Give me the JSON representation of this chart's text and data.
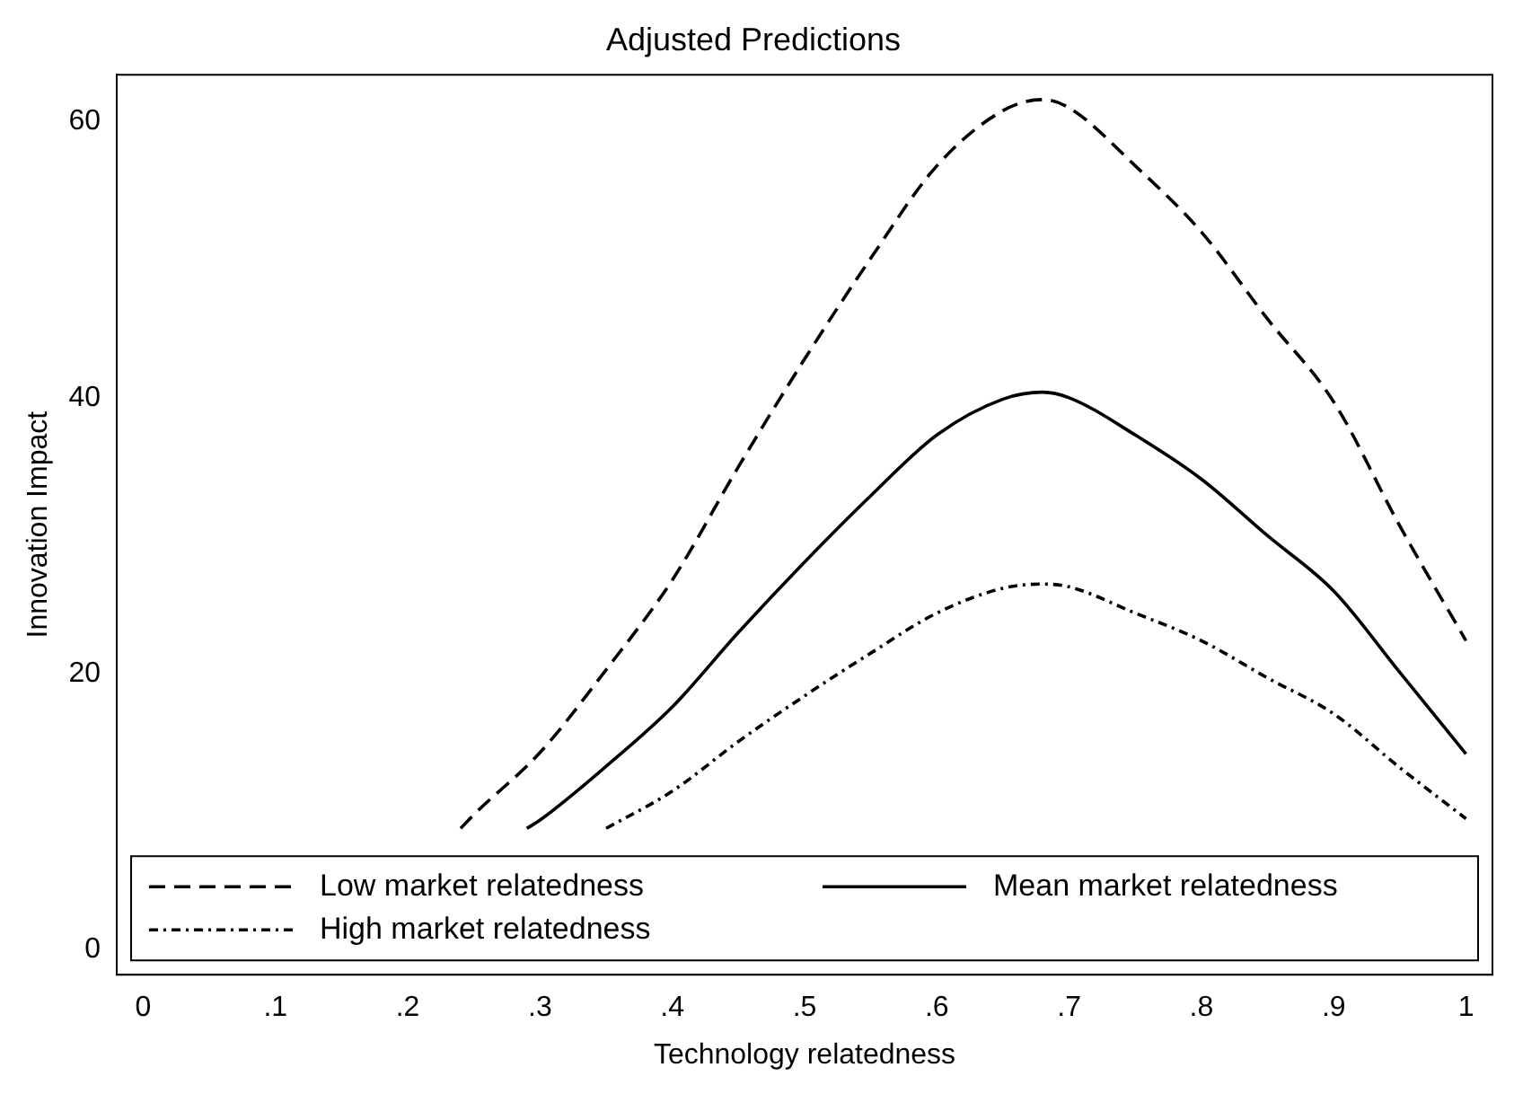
{
  "chart_data": {
    "type": "line",
    "title": "Adjusted Predictions",
    "xlabel": "Technology relatedness",
    "ylabel": "Innovation Impact",
    "xlim": [
      -0.02,
      1.02
    ],
    "ylim": [
      -1.8,
      63.4
    ],
    "xticks": [
      0,
      {
        "value": 0.1,
        "label": ".1"
      },
      {
        "value": 0.2,
        "label": ".2"
      },
      {
        "value": 0.3,
        "label": ".3"
      },
      {
        "value": 0.4,
        "label": ".4"
      },
      {
        "value": 0.5,
        "label": ".5"
      },
      {
        "value": 0.6,
        "label": ".6"
      },
      {
        "value": 0.7,
        "label": ".7"
      },
      {
        "value": 0.8,
        "label": ".8"
      },
      {
        "value": 0.9,
        "label": ".9"
      },
      1
    ],
    "yticks": [
      0,
      20,
      40,
      60
    ],
    "grid": false,
    "legend": "bottom",
    "marker": "none",
    "series": [
      {
        "name": "Low market relatedness",
        "color": "#000000",
        "line_style": "dashed",
        "x": [
          0.24,
          0.25,
          0.3,
          0.35,
          0.4,
          0.45,
          0.5,
          0.55,
          0.6,
          0.65,
          0.68,
          0.7,
          0.75,
          0.8,
          0.85,
          0.9,
          0.95,
          1
        ],
        "values": [
          8.8,
          9.8,
          14.3,
          20.3,
          26.8,
          35.0,
          42.8,
          50.1,
          56.8,
          60.8,
          61.6,
          61.0,
          56.8,
          52.0,
          45.7,
          39.7,
          30.7,
          22.4
        ]
      },
      {
        "name": "Mean market relatedness",
        "color": "#000000",
        "line_style": "solid",
        "x": [
          0.29,
          0.3,
          0.35,
          0.4,
          0.45,
          0.5,
          0.55,
          0.6,
          0.65,
          0.68,
          0.7,
          0.75,
          0.8,
          0.85,
          0.9,
          0.95,
          1
        ],
        "values": [
          8.8,
          9.4,
          13.3,
          17.6,
          23.0,
          28.1,
          32.9,
          37.3,
          39.9,
          40.4,
          40.0,
          37.3,
          34.1,
          30.0,
          26.0,
          20.1,
          14.2
        ]
      },
      {
        "name": "High market relatedness",
        "color": "#000000",
        "line_style": "dotted",
        "x": [
          0.35,
          0.4,
          0.45,
          0.5,
          0.55,
          0.6,
          0.65,
          0.68,
          0.7,
          0.75,
          0.8,
          0.85,
          0.9,
          0.95,
          1
        ],
        "values": [
          8.8,
          11.5,
          15.1,
          18.4,
          21.5,
          24.4,
          26.2,
          26.5,
          26.3,
          24.4,
          22.4,
          19.7,
          17.1,
          13.2,
          9.5
        ]
      }
    ]
  }
}
